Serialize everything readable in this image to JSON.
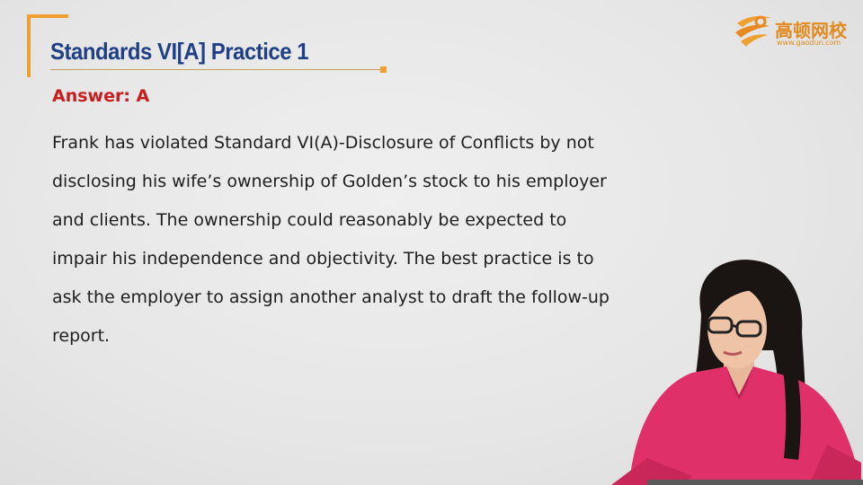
{
  "slide": {
    "title": "Standards VI[A] Practice 1",
    "answer_label": "Answer: A",
    "body_lines": [
      "Frank has violated Standard VI(A)-Disclosure of Conflicts by not",
      "disclosing his wife’s ownership of Golden’s stock to his employer",
      "and clients. The ownership could reasonably be expected to",
      "impair his independence and objectivity. The best practice is to",
      "ask the employer to assign another analyst to draft the follow-up",
      "report."
    ]
  },
  "logo": {
    "name": "高顿网校",
    "url": "www.gaodun.com",
    "icon": "gaodun-logo-icon"
  },
  "colors": {
    "accent": "#f0a030",
    "title": "#1f3f86",
    "answer": "#c81e1e",
    "shirt": "#e0306a"
  },
  "presenter": {
    "icon": "presenter-figure"
  }
}
